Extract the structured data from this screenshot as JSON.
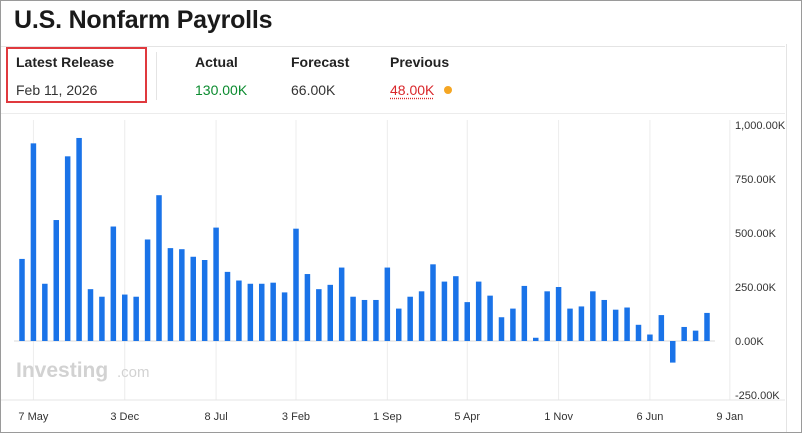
{
  "header": {
    "title": "U.S. Nonfarm Payrolls",
    "latest_release_label": "Latest Release",
    "latest_release_date": "Feb 11, 2026",
    "actual_label": "Actual",
    "actual_value": "130.00K",
    "forecast_label": "Forecast",
    "forecast_value": "66.00K",
    "previous_label": "Previous",
    "previous_value": "48.00K"
  },
  "colors": {
    "bar": "#1a73e8",
    "actual": "#0b8b2f",
    "previous": "#d9262a",
    "previous_dot": "#f5a623",
    "highlight_box": "#e0393e"
  },
  "watermark": {
    "brand": "Investing",
    "suffix": ".com"
  },
  "chart_data": {
    "type": "bar",
    "title": "",
    "xlabel": "",
    "ylabel": "",
    "ylim": [
      -250,
      1000
    ],
    "y_tick_values": [
      1000,
      750,
      500,
      250,
      0,
      -250
    ],
    "y_tick_labels": [
      "1,000.00K",
      "750.00K",
      "500.00K",
      "250.00K",
      "0.00K",
      "-250.00K"
    ],
    "x_tick_labels": [
      "7 May",
      "3 Dec",
      "8 Jul",
      "3 Feb",
      "1 Sep",
      "5 Apr",
      "1 Nov",
      "6 Jun",
      "9 Jan"
    ],
    "x_tick_bar_index": [
      1,
      9,
      17,
      24,
      32,
      39,
      47,
      55,
      62
    ],
    "grid": "vertical",
    "series": [
      {
        "values": [
          380,
          915,
          265,
          560,
          855,
          940,
          240,
          205,
          530,
          215,
          205,
          470,
          675,
          430,
          425,
          390,
          375,
          525,
          320,
          280,
          265,
          265,
          270,
          225,
          520,
          310,
          240,
          260,
          340,
          205,
          190,
          190,
          340,
          150,
          205,
          230,
          355,
          275,
          300,
          180,
          275,
          210,
          110,
          150,
          255,
          15,
          230,
          250,
          150,
          160,
          230,
          190,
          145,
          155,
          75,
          30,
          120,
          -100,
          65,
          48,
          130
        ]
      }
    ]
  }
}
